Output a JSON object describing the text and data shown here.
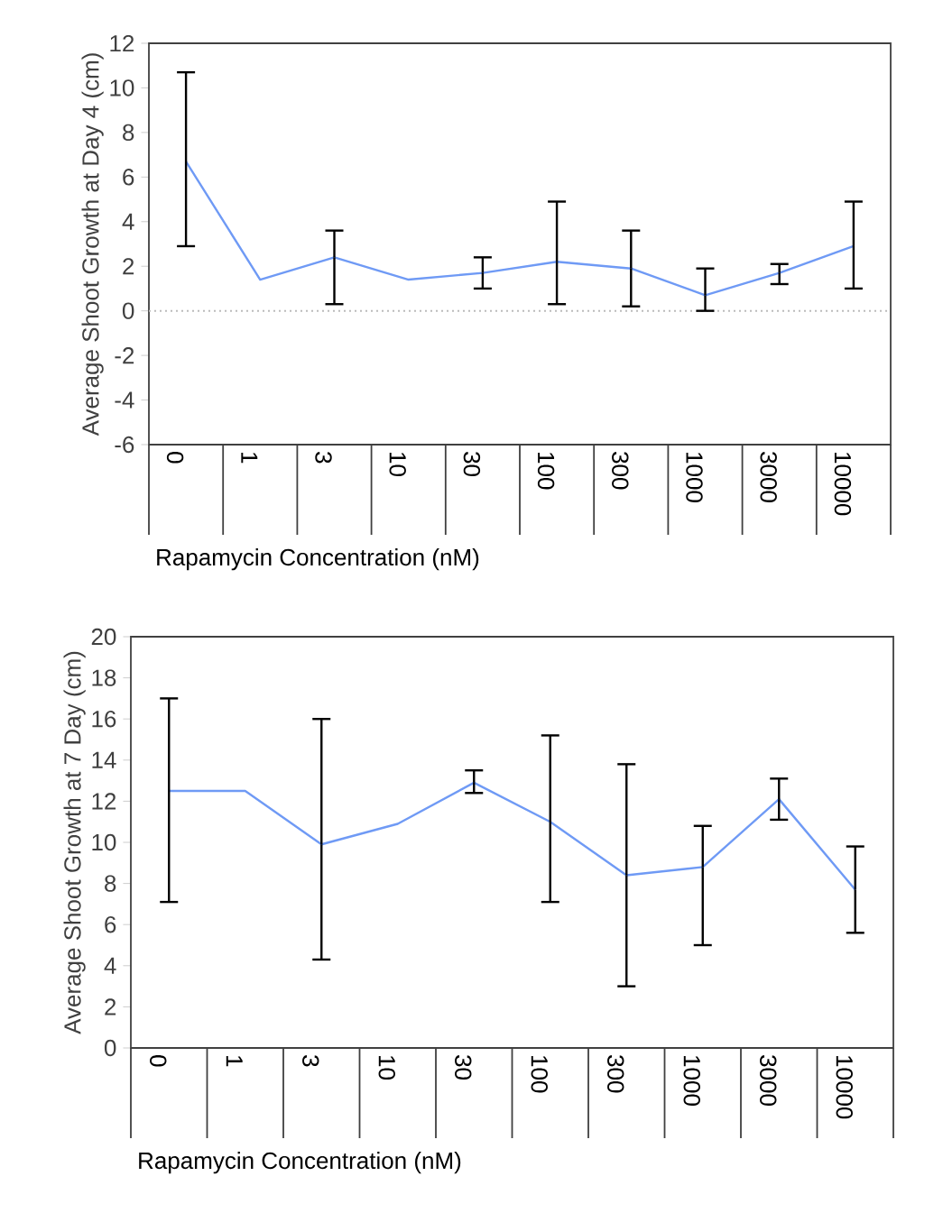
{
  "chart_data": [
    {
      "type": "line",
      "xlabel": "Rapamycin Concentration (nM)",
      "ylabel": "Average Shoot Growth at Day 4 (cm)",
      "categories": [
        "0",
        "1",
        "3",
        "10",
        "30",
        "100",
        "300",
        "1000",
        "3000",
        "10000"
      ],
      "series": [
        {
          "color": "#6f9af5",
          "values": [
            6.7,
            1.4,
            2.4,
            1.4,
            1.7,
            2.2,
            1.9,
            0.7,
            1.7,
            2.9
          ],
          "errors": [
            [
              2.9,
              10.7
            ],
            null,
            [
              0.3,
              3.6
            ],
            null,
            [
              1.0,
              2.4
            ],
            [
              0.3,
              4.9
            ],
            [
              0.2,
              3.6
            ],
            [
              0.0,
              1.9
            ],
            [
              1.2,
              2.1
            ],
            [
              1.0,
              4.9
            ]
          ]
        }
      ],
      "ylim": [
        -6,
        12
      ],
      "yticks": [
        -6,
        -4,
        -2,
        0,
        2,
        4,
        6,
        8,
        10,
        12
      ],
      "ref_lines": [
        {
          "axis": "y",
          "value": 0,
          "color": "#bbbbbb",
          "line_style": "dotted"
        }
      ]
    },
    {
      "type": "line",
      "xlabel": "Rapamycin Concentration (nM)",
      "ylabel": "Average Shoot Growth at 7 Day (cm)",
      "categories": [
        "0",
        "1",
        "3",
        "10",
        "30",
        "100",
        "300",
        "1000",
        "3000",
        "10000"
      ],
      "series": [
        {
          "color": "#6f9af5",
          "values": [
            12.5,
            12.5,
            9.9,
            10.9,
            12.9,
            11.0,
            8.4,
            8.8,
            12.1,
            7.7
          ],
          "errors": [
            [
              7.1,
              17.0
            ],
            null,
            [
              4.3,
              16.0
            ],
            null,
            [
              12.4,
              13.5
            ],
            [
              7.1,
              15.2
            ],
            [
              3.0,
              13.8
            ],
            [
              5.0,
              10.8
            ],
            [
              11.1,
              13.1
            ],
            [
              5.6,
              9.8
            ]
          ]
        }
      ],
      "ylim": [
        0,
        20
      ],
      "yticks": [
        0,
        2,
        4,
        6,
        8,
        10,
        12,
        14,
        16,
        18,
        20
      ]
    }
  ]
}
